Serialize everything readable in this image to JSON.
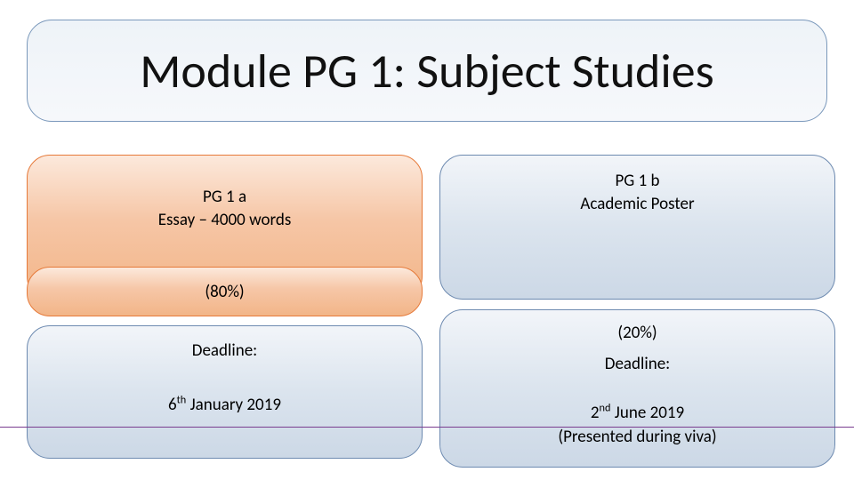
{
  "title": "Module PG 1: Subject Studies",
  "left": {
    "code": "PG 1 a",
    "task": "Essay – 4000 words",
    "weight": "(80%)",
    "deadline_label": "Deadline:",
    "deadline_date_html": "6<sup>th</sup> January 2019"
  },
  "right": {
    "code": "PG 1 b",
    "task": "Academic Poster",
    "weight": "(20%)",
    "deadline_label": "Deadline:",
    "deadline_date_html": "2<sup>nd</sup> June 2019",
    "deadline_note": "(Presented during viva)"
  },
  "style": {
    "background": "#ffffff",
    "title_border": "#7a98bb",
    "orange_border": "#e67a3a",
    "blue_border": "#6d8ab0",
    "divider_color": "#7a3d8f",
    "title_fontsize": 54,
    "body_fontsize": 19,
    "border_radius": 26
  }
}
